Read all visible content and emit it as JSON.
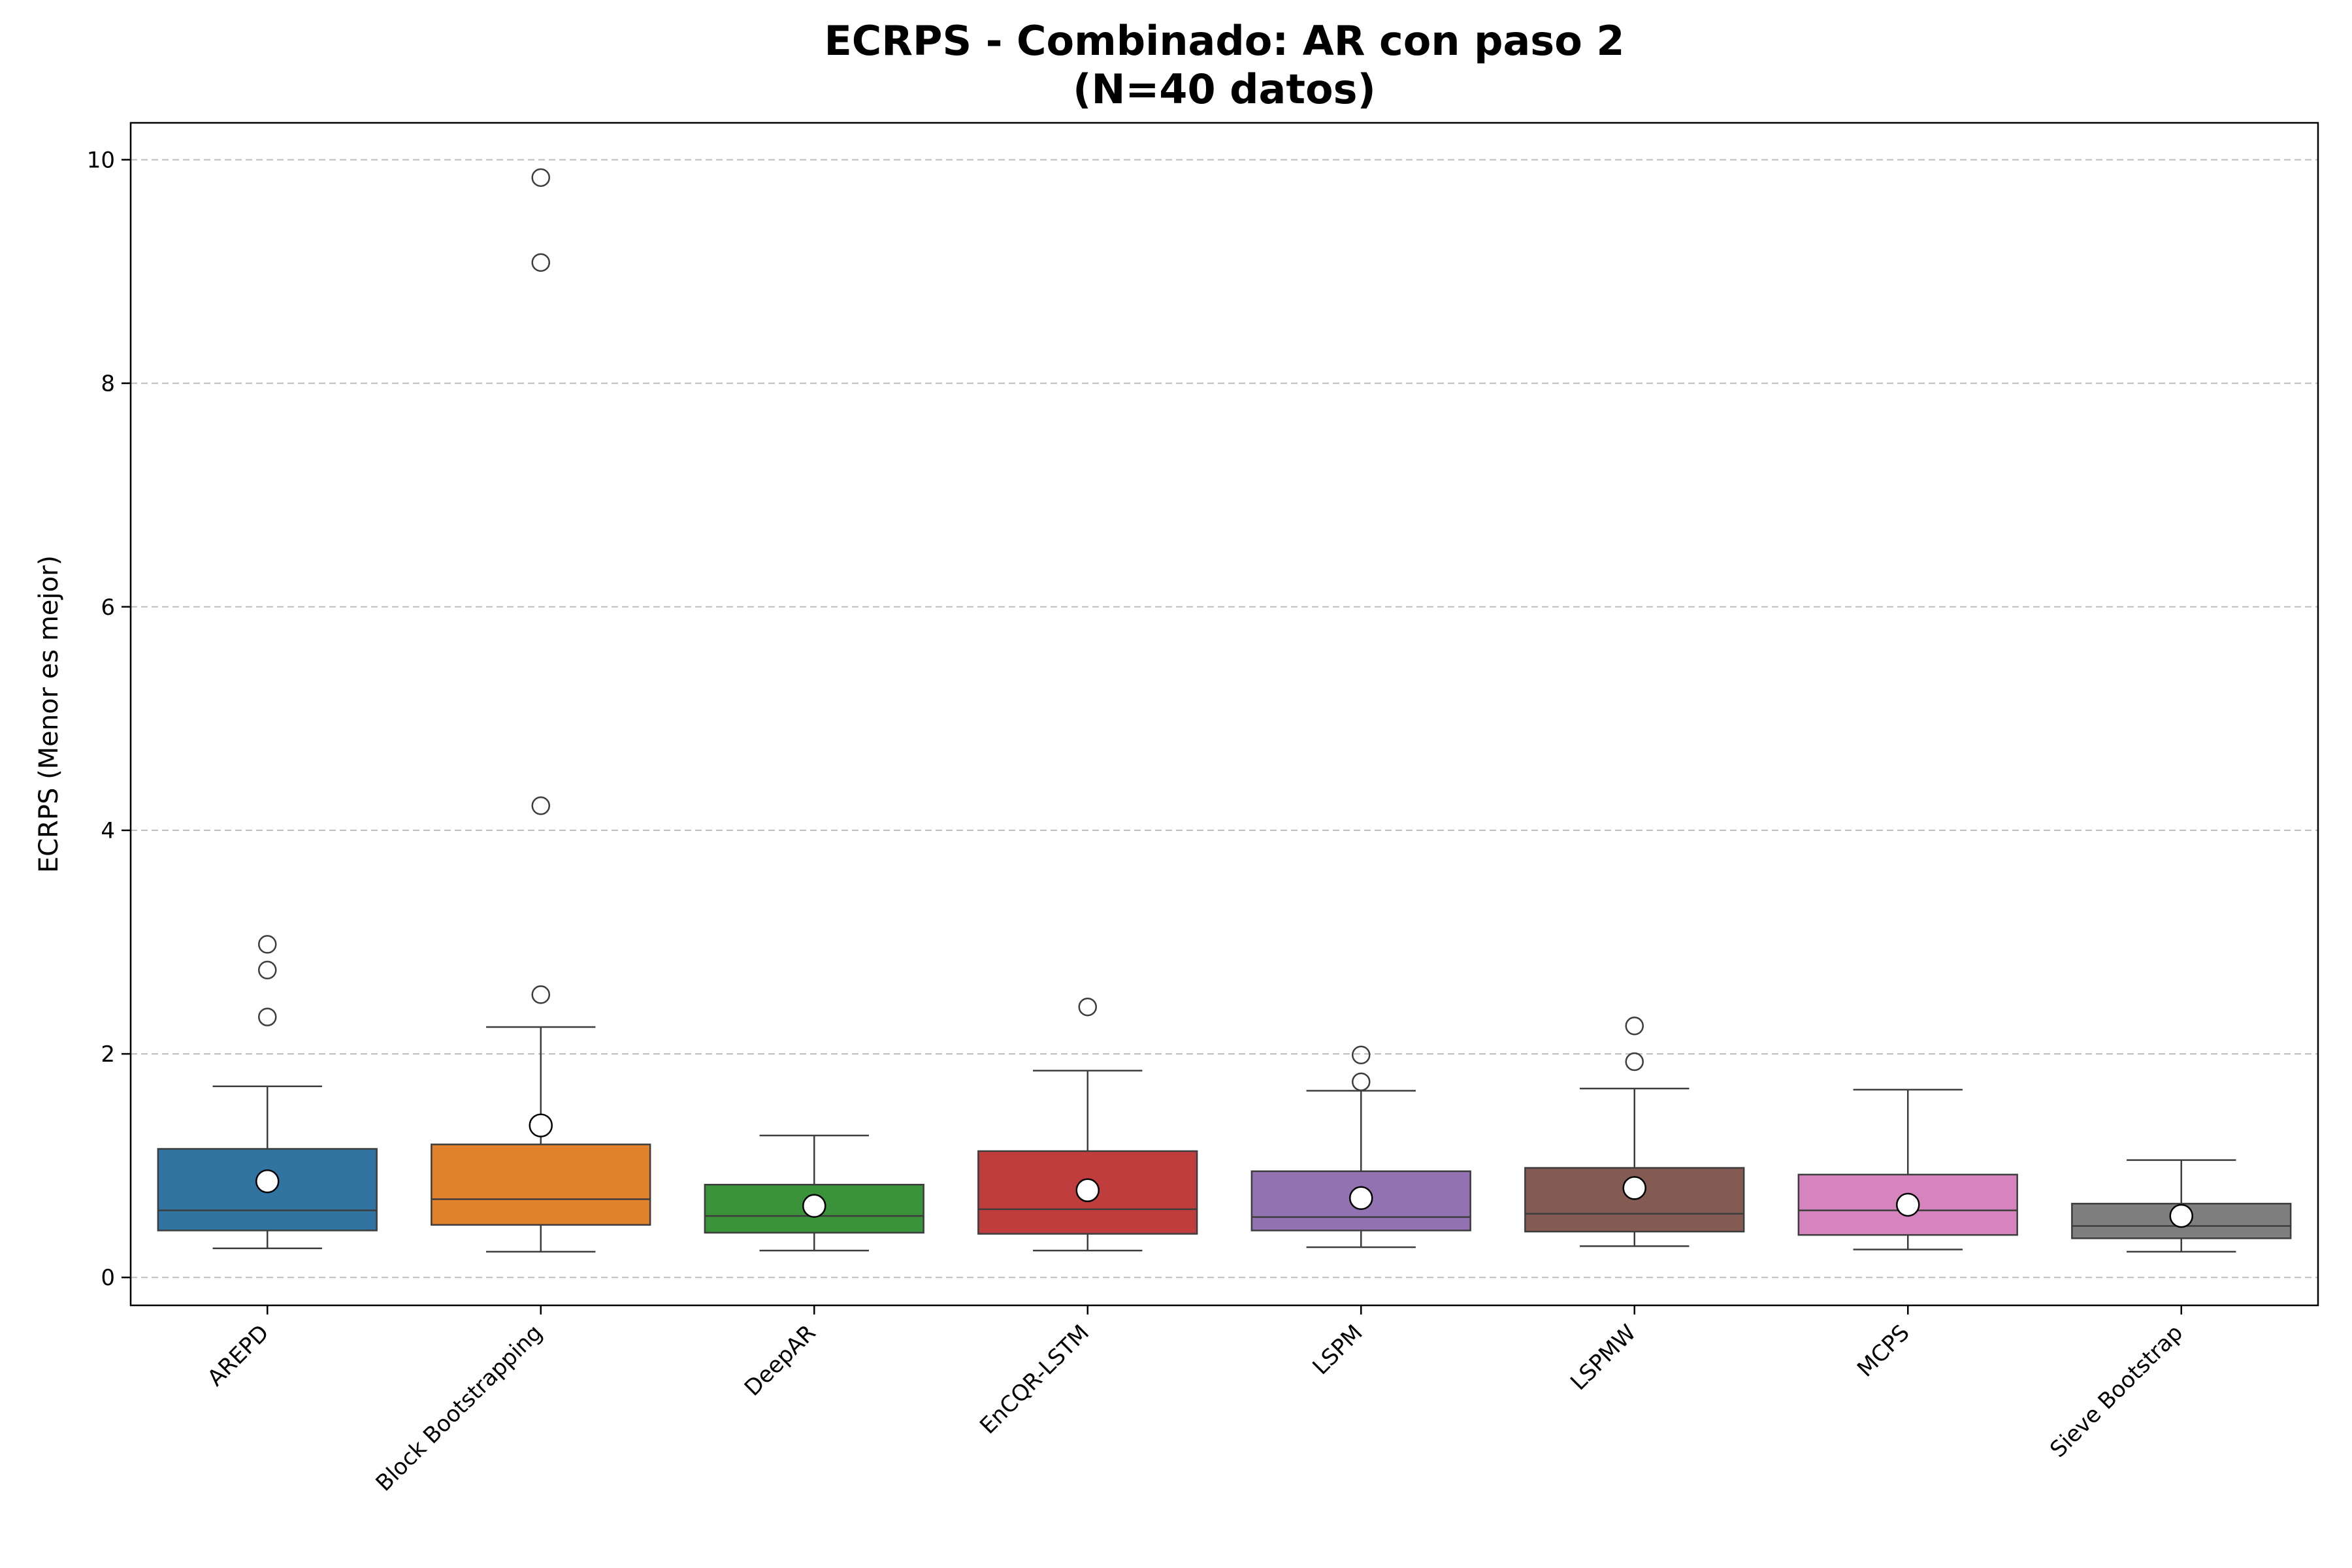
{
  "chart_data": {
    "type": "box",
    "title": "ECRPS - Combinado: AR con paso 2",
    "subtitle": "(N=40 datos)",
    "xlabel": "",
    "ylabel": "ECRPS (Menor es mejor)",
    "ylim": [
      -0.25,
      10.33
    ],
    "yticks": [
      0,
      2,
      4,
      6,
      8,
      10
    ],
    "grid": "y-dashed",
    "series": [
      {
        "name": "AREPD",
        "color": "#3274a1",
        "whisker_low": 0.26,
        "q1": 0.42,
        "median": 0.6,
        "q3": 1.15,
        "whisker_high": 1.71,
        "mean": 0.86,
        "outliers": [
          2.33,
          2.75,
          2.98
        ]
      },
      {
        "name": "Block Bootstrapping",
        "color": "#e1812c",
        "whisker_low": 0.23,
        "q1": 0.47,
        "median": 0.7,
        "q3": 1.19,
        "whisker_high": 2.24,
        "mean": 1.36,
        "outliers": [
          2.53,
          4.22,
          9.08,
          9.84
        ]
      },
      {
        "name": "DeepAR",
        "color": "#3a923a",
        "whisker_low": 0.24,
        "q1": 0.4,
        "median": 0.55,
        "q3": 0.83,
        "whisker_high": 1.27,
        "mean": 0.64,
        "outliers": []
      },
      {
        "name": "EnCQR-LSTM",
        "color": "#c03d3e",
        "whisker_low": 0.24,
        "q1": 0.39,
        "median": 0.61,
        "q3": 1.13,
        "whisker_high": 1.85,
        "mean": 0.78,
        "outliers": [
          2.42
        ]
      },
      {
        "name": "LSPM",
        "color": "#9372b2",
        "whisker_low": 0.27,
        "q1": 0.42,
        "median": 0.54,
        "q3": 0.95,
        "whisker_high": 1.67,
        "mean": 0.71,
        "outliers": [
          1.75,
          1.99
        ]
      },
      {
        "name": "LSPMW",
        "color": "#845b53",
        "whisker_low": 0.28,
        "q1": 0.41,
        "median": 0.57,
        "q3": 0.98,
        "whisker_high": 1.69,
        "mean": 0.8,
        "outliers": [
          1.93,
          2.25
        ]
      },
      {
        "name": "MCPS",
        "color": "#d684bd",
        "whisker_low": 0.25,
        "q1": 0.38,
        "median": 0.6,
        "q3": 0.92,
        "whisker_high": 1.68,
        "mean": 0.65,
        "outliers": []
      },
      {
        "name": "Sieve Bootstrap",
        "color": "#7f7f7f",
        "whisker_low": 0.23,
        "q1": 0.35,
        "median": 0.46,
        "q3": 0.66,
        "whisker_high": 1.05,
        "mean": 0.55,
        "outliers": []
      }
    ]
  }
}
